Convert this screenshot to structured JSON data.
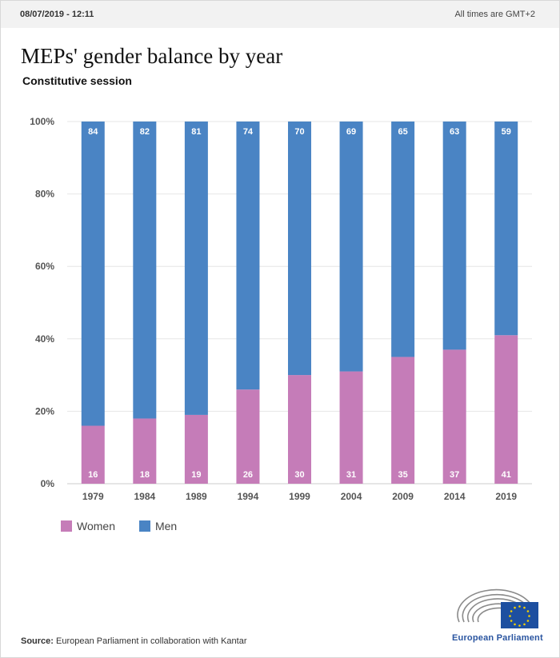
{
  "header": {
    "datetime": "08/07/2019 - 12:11",
    "timezone_note": "All times are GMT+2"
  },
  "chart_data": {
    "type": "bar",
    "stacked": true,
    "title": "MEPs' gender balance by year",
    "subtitle": "Constitutive session",
    "categories": [
      "1979",
      "1984",
      "1989",
      "1994",
      "1999",
      "2004",
      "2009",
      "2014",
      "2019"
    ],
    "series": [
      {
        "name": "Women",
        "color": "#c57cb8",
        "values": [
          16,
          18,
          19,
          26,
          30,
          31,
          35,
          37,
          41
        ]
      },
      {
        "name": "Men",
        "color": "#4a84c4",
        "values": [
          84,
          82,
          81,
          74,
          70,
          69,
          65,
          63,
          59
        ]
      }
    ],
    "ylim": [
      0,
      100
    ],
    "yticks": [
      "0%",
      "20%",
      "40%",
      "60%",
      "80%",
      "100%"
    ],
    "grid": true,
    "legend_position": "bottom-left"
  },
  "legend": [
    {
      "label": "Women",
      "color": "#c57cb8"
    },
    {
      "label": "Men",
      "color": "#4a84c4"
    }
  ],
  "footer": {
    "source_label": "Source:",
    "source_text": "European Parliament in collaboration with Kantar",
    "logo_text": "European Parliament",
    "logo_icon": "european-parliament-logo"
  }
}
